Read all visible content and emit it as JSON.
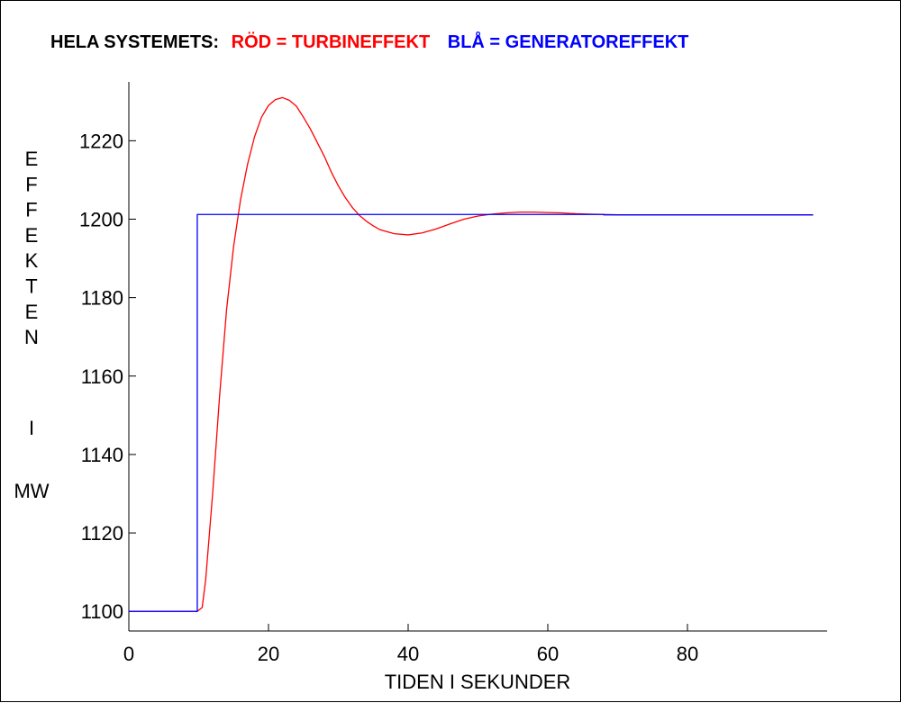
{
  "chart_data": {
    "type": "line",
    "title": {
      "prefix": "HELA SYSTEMETS:",
      "red_part": "RÖD = TURBINEFFEKT",
      "blue_part": "BLÅ = GENERATOREFFEKT"
    },
    "xlabel": "TIDEN I SEKUNDER",
    "ylabel_letters": [
      "E",
      "F",
      "F",
      "E",
      "K",
      "T",
      "E",
      "N",
      "I",
      "MW"
    ],
    "xlim": [
      0,
      100
    ],
    "ylim": [
      1095,
      1235
    ],
    "xticks": [
      0,
      20,
      40,
      60,
      80
    ],
    "yticks": [
      1100,
      1120,
      1140,
      1160,
      1180,
      1200,
      1220
    ],
    "grid": false,
    "colors": {
      "turbine": "#ff0000",
      "generator": "#0000ff"
    },
    "series": [
      {
        "name": "RÖD = TURBINEFFEKT",
        "color": "#ff0000",
        "x": [
          0,
          9.8,
          10.5,
          11,
          12,
          13,
          14,
          15,
          16,
          17,
          18,
          19,
          20,
          21,
          22,
          23,
          24,
          25,
          26,
          27,
          28,
          29,
          30,
          31,
          32,
          33,
          34,
          35,
          36,
          38,
          40,
          42,
          44,
          46,
          48,
          50,
          52,
          54,
          56,
          58,
          60,
          62,
          64,
          66,
          68,
          70,
          75,
          80,
          85,
          90,
          95,
          98
        ],
        "y": [
          1100,
          1100,
          1101,
          1108,
          1130,
          1155,
          1177,
          1193,
          1205,
          1214,
          1221,
          1226,
          1229,
          1230.5,
          1231,
          1230.3,
          1228.8,
          1226,
          1223,
          1219.5,
          1216,
          1212,
          1208.5,
          1205.5,
          1203,
          1201,
          1199.5,
          1198.3,
          1197.3,
          1196.3,
          1196,
          1196.5,
          1197.5,
          1198.8,
          1200,
          1200.8,
          1201.3,
          1201.6,
          1201.8,
          1201.8,
          1201.7,
          1201.6,
          1201.4,
          1201.3,
          1201.2,
          1201.1,
          1201.1,
          1201.1,
          1201.1,
          1201.1,
          1201.1,
          1201.1
        ]
      },
      {
        "name": "BLÅ = GENERATOREFFEKT",
        "color": "#0000ff",
        "x": [
          0,
          9.8,
          9.8,
          68,
          68,
          98
        ],
        "y": [
          1100,
          1100,
          1201.2,
          1201.2,
          1201.1,
          1201.1
        ]
      }
    ]
  }
}
